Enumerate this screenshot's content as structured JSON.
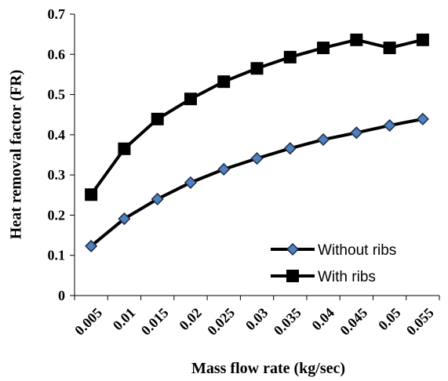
{
  "chart_data": {
    "type": "line",
    "x_label": "Mass flow rate (kg/sec)",
    "y_label": "Heat removal factor (FR)",
    "categories": [
      "0.005",
      "0.01",
      "0.015",
      "0.02",
      "0.025",
      "0.03",
      "0.035",
      "0.04",
      "0.045",
      "0.05",
      "0.055"
    ],
    "series": [
      {
        "name": "Without ribs",
        "color": "#4f81bd",
        "marker": "diamond",
        "values": [
          0.123,
          0.191,
          0.24,
          0.281,
          0.314,
          0.341,
          0.366,
          0.388,
          0.405,
          0.423,
          0.439
        ]
      },
      {
        "name": "With ribs",
        "color": "#000000",
        "marker": "square",
        "values": [
          0.251,
          0.365,
          0.439,
          0.489,
          0.532,
          0.565,
          0.593,
          0.616,
          0.636,
          0.616,
          0.636
        ]
      }
    ],
    "ylim": [
      0,
      0.7
    ],
    "yticks": [
      0,
      0.1,
      0.2,
      0.3,
      0.4,
      0.5,
      0.6,
      0.7
    ],
    "grid": false,
    "legend": "lower right"
  }
}
